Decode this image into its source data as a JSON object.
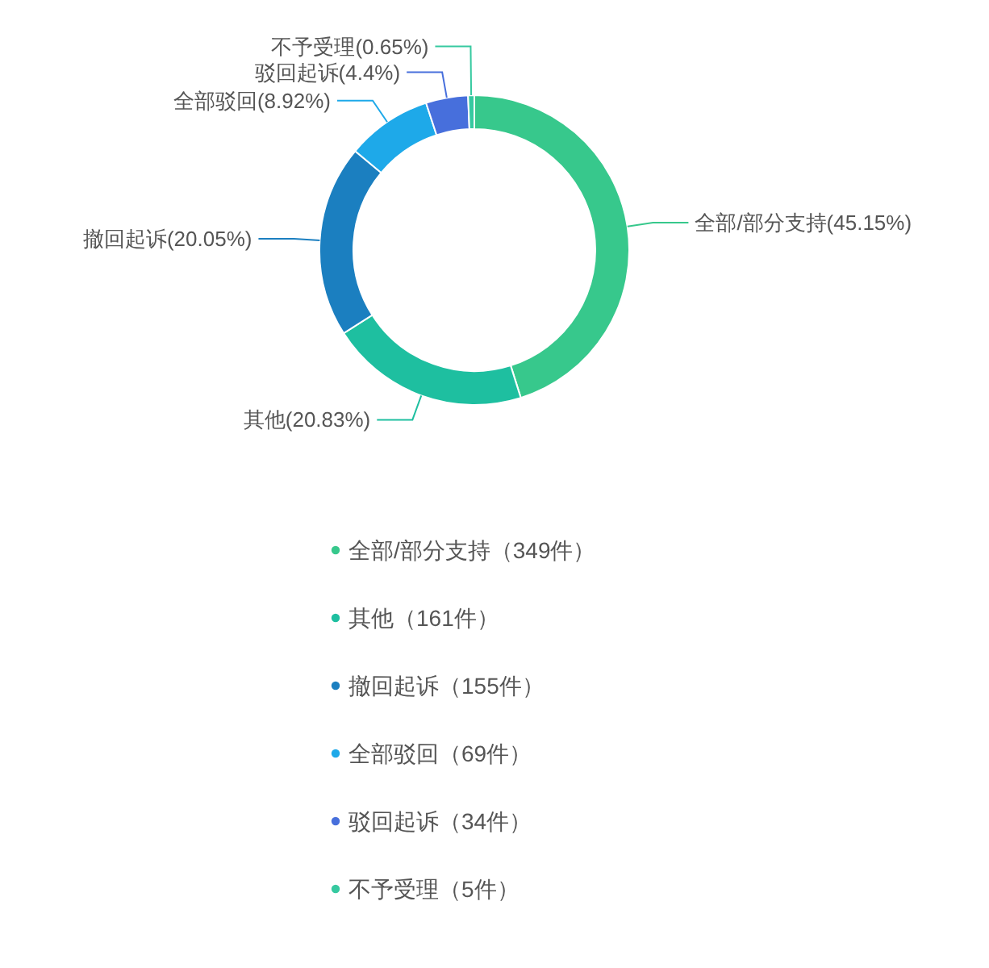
{
  "chart_data": {
    "type": "donut",
    "categories": [
      "全部/部分支持（349件）",
      "其他（161件）",
      "撤回起诉（155件）",
      "全部驳回（69件）",
      "驳回起诉（34件）",
      "不予受理（5件）"
    ],
    "values": [
      349,
      161,
      155,
      69,
      34,
      5
    ],
    "colors": [
      "#37c88c",
      "#1ebfa0",
      "#1b7fc0",
      "#1ea9e9",
      "#476fdc",
      "#36c9a0"
    ],
    "value_labels": [
      "全部/部分支持(45.15%)",
      "其他(20.83%)",
      "撤回起诉(20.05%)",
      "全部驳回(8.92%)",
      "驳回起诉(4.4%)",
      "不予受理(0.65%)"
    ],
    "legend": "bottom"
  }
}
